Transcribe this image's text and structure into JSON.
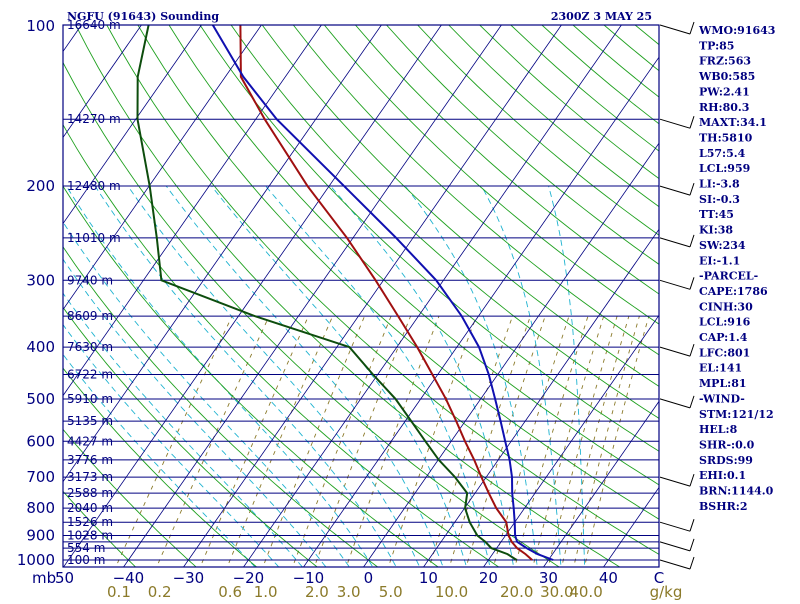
{
  "header": {
    "title": "NGFU (91643) Sounding",
    "time": "2300Z  3 MAY 25"
  },
  "colors": {
    "isobar": "#000080",
    "temperature": "#a01010",
    "dewpoint": "#0d4d0d",
    "parcel": "#1010b0",
    "dry_adiabat": "#1fa01f",
    "moist_adiabat": "#1fb3d0",
    "mixing_ratio": "#8b7a2a",
    "text": "#000080"
  },
  "indices": [
    "WMO:91643",
    "TP:85",
    "FRZ:563",
    "WB0:585",
    "PW:2.41",
    "RH:80.3",
    "MAXT:34.1",
    "TH:5810",
    "L57:5.4",
    "LCL:959",
    "LI:-3.8",
    "SI:-0.3",
    "TT:45",
    "KI:38",
    "SW:234",
    "EI:-1.1",
    "-PARCEL-",
    "CAPE:1786",
    "CINH:30",
    "LCL:916",
    "CAP:1.4",
    "LFC:801",
    "EL:141",
    "MPL:81",
    "-WIND-",
    "STM:121/12",
    "HEL:8",
    "SHR-:0.0",
    "SRDS:99",
    "EHI:0.1",
    "BRN:1144.0",
    "BSHR:2"
  ],
  "chart_data": {
    "type": "skew-t",
    "title": "NGFU (91643) Sounding",
    "ylabel": "mb",
    "xlabel": "C",
    "mixing_ratio_unit": "g/kg",
    "pressure_range": [
      1000,
      100
    ],
    "temperature_range": [
      -50,
      50
    ],
    "pressure_ticks": [
      {
        "p": 100,
        "label": "100"
      },
      {
        "p": 200,
        "label": "200"
      },
      {
        "p": 300,
        "label": "300"
      },
      {
        "p": 400,
        "label": "400"
      },
      {
        "p": 500,
        "label": "500"
      },
      {
        "p": 600,
        "label": "600"
      },
      {
        "p": 700,
        "label": "700"
      },
      {
        "p": 800,
        "label": "800"
      },
      {
        "p": 900,
        "label": "900"
      },
      {
        "p": 1000,
        "label": "1000"
      }
    ],
    "isobars": [
      100,
      150,
      200,
      250,
      300,
      350,
      400,
      450,
      500,
      550,
      600,
      650,
      700,
      750,
      800,
      850,
      900,
      925,
      950,
      1000
    ],
    "heights": [
      {
        "p": 100,
        "label": "16640 m"
      },
      {
        "p": 150,
        "label": "14270 m"
      },
      {
        "p": 200,
        "label": "12480 m"
      },
      {
        "p": 250,
        "label": "11010 m"
      },
      {
        "p": 300,
        "label": "9740 m"
      },
      {
        "p": 350,
        "label": "8609 m"
      },
      {
        "p": 400,
        "label": "7630 m"
      },
      {
        "p": 450,
        "label": "6722 m"
      },
      {
        "p": 500,
        "label": "5910 m"
      },
      {
        "p": 550,
        "label": "5135 m"
      },
      {
        "p": 600,
        "label": "4427 m"
      },
      {
        "p": 650,
        "label": "3776 m"
      },
      {
        "p": 700,
        "label": "3173 m"
      },
      {
        "p": 750,
        "label": "2588 m"
      },
      {
        "p": 800,
        "label": "2040 m"
      },
      {
        "p": 850,
        "label": "1526 m"
      },
      {
        "p": 900,
        "label": "1028 m"
      },
      {
        "p": 950,
        "label": "554 m"
      },
      {
        "p": 1000,
        "label": "100 m"
      }
    ],
    "temperature_ticks": [
      {
        "t": -40,
        "label": "−40"
      },
      {
        "t": -30,
        "label": "−30"
      },
      {
        "t": -20,
        "label": "−20"
      },
      {
        "t": -10,
        "label": "−10"
      },
      {
        "t": 0,
        "label": "0"
      },
      {
        "t": 10,
        "label": "10"
      },
      {
        "t": 20,
        "label": "20"
      },
      {
        "t": 30,
        "label": "30"
      },
      {
        "t": 40,
        "label": "40"
      }
    ],
    "left_corner_label": "50",
    "mixing_ratio_ticks": [
      {
        "w": 0.1,
        "label": "0.1"
      },
      {
        "w": 0.2,
        "label": "0.2"
      },
      {
        "w": 0.6,
        "label": "0.6"
      },
      {
        "w": 1.0,
        "label": "1.0"
      },
      {
        "w": 2.0,
        "label": "2.0"
      },
      {
        "w": 3.0,
        "label": "3.0"
      },
      {
        "w": 5.0,
        "label": "5.0"
      },
      {
        "w": 10.0,
        "label": "10.0"
      },
      {
        "w": 20.0,
        "label": "20.0"
      },
      {
        "w": 30.0,
        "label": "30.0"
      },
      {
        "w": 40.0,
        "label": "40.0"
      }
    ],
    "series": [
      {
        "name": "temperature",
        "points": [
          {
            "p": 1000,
            "t": 27.3
          },
          {
            "p": 975,
            "t": 25.5
          },
          {
            "p": 950,
            "t": 23.4
          },
          {
            "p": 925,
            "t": 21.8
          },
          {
            "p": 900,
            "t": 20.5
          },
          {
            "p": 850,
            "t": 18.6
          },
          {
            "p": 800,
            "t": 15.3
          },
          {
            "p": 750,
            "t": 12.3
          },
          {
            "p": 700,
            "t": 9.2
          },
          {
            "p": 650,
            "t": 6.0
          },
          {
            "p": 600,
            "t": 2.3
          },
          {
            "p": 550,
            "t": -1.5
          },
          {
            "p": 500,
            "t": -5.8
          },
          {
            "p": 450,
            "t": -10.9
          },
          {
            "p": 400,
            "t": -16.6
          },
          {
            "p": 350,
            "t": -23.4
          },
          {
            "p": 300,
            "t": -31.3
          },
          {
            "p": 250,
            "t": -41.0
          },
          {
            "p": 200,
            "t": -53.6
          },
          {
            "p": 150,
            "t": -68.5
          },
          {
            "p": 125,
            "t": -77.4
          },
          {
            "p": 100,
            "t": -83.5
          }
        ]
      },
      {
        "name": "dewpoint",
        "points": [
          {
            "p": 1000,
            "t": 24.7
          },
          {
            "p": 975,
            "t": 22.5
          },
          {
            "p": 950,
            "t": 19.1
          },
          {
            "p": 925,
            "t": 17.4
          },
          {
            "p": 900,
            "t": 15.3
          },
          {
            "p": 850,
            "t": 12.5
          },
          {
            "p": 800,
            "t": 10.1
          },
          {
            "p": 750,
            "t": 8.7
          },
          {
            "p": 700,
            "t": 4.8
          },
          {
            "p": 650,
            "t": 0.1
          },
          {
            "p": 600,
            "t": -4.3
          },
          {
            "p": 550,
            "t": -9.0
          },
          {
            "p": 500,
            "t": -14.2
          },
          {
            "p": 450,
            "t": -20.8
          },
          {
            "p": 400,
            "t": -27.9
          },
          {
            "p": 350,
            "t": -47.3
          },
          {
            "p": 300,
            "t": -67.0
          },
          {
            "p": 250,
            "t": -72.7
          },
          {
            "p": 200,
            "t": -79.9
          },
          {
            "p": 150,
            "t": -89.7
          },
          {
            "p": 125,
            "t": -94.6
          },
          {
            "p": 100,
            "t": -98.8
          }
        ]
      },
      {
        "name": "parcel",
        "points": [
          {
            "p": 1000,
            "t": 30.8
          },
          {
            "p": 975,
            "t": 27.5
          },
          {
            "p": 950,
            "t": 25.0
          },
          {
            "p": 925,
            "t": 22.7
          },
          {
            "p": 900,
            "t": 21.6
          },
          {
            "p": 850,
            "t": 20.0
          },
          {
            "p": 800,
            "t": 18.2
          },
          {
            "p": 750,
            "t": 16.2
          },
          {
            "p": 700,
            "t": 14.3
          },
          {
            "p": 650,
            "t": 11.9
          },
          {
            "p": 600,
            "t": 9.0
          },
          {
            "p": 550,
            "t": 5.9
          },
          {
            "p": 500,
            "t": 2.4
          },
          {
            "p": 450,
            "t": -1.5
          },
          {
            "p": 400,
            "t": -6.3
          },
          {
            "p": 350,
            "t": -12.8
          },
          {
            "p": 300,
            "t": -21.2
          },
          {
            "p": 250,
            "t": -32.8
          },
          {
            "p": 200,
            "t": -47.5
          },
          {
            "p": 150,
            "t": -66.5
          },
          {
            "p": 125,
            "t": -77.0
          },
          {
            "p": 100,
            "t": -88.1
          }
        ]
      }
    ],
    "wind_barbs": [
      {
        "p": 100
      },
      {
        "p": 150
      },
      {
        "p": 200
      },
      {
        "p": 250
      },
      {
        "p": 300
      },
      {
        "p": 400
      },
      {
        "p": 500
      },
      {
        "p": 700
      },
      {
        "p": 850
      },
      {
        "p": 925
      },
      {
        "p": 1000
      }
    ]
  }
}
